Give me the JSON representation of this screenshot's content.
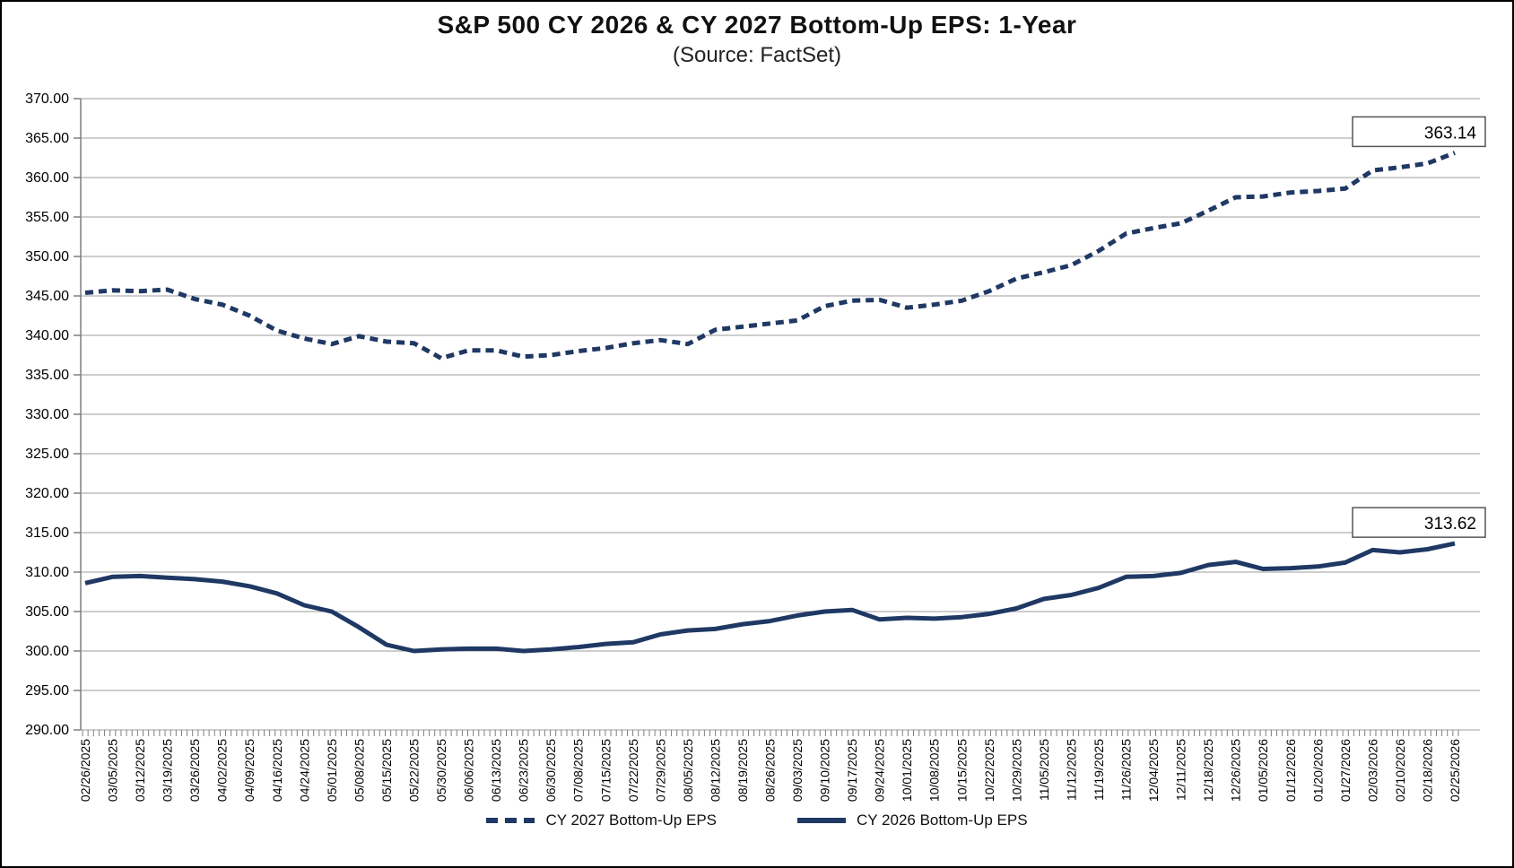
{
  "header": {
    "title": "S&P 500 CY 2026 & CY 2027 Bottom-Up EPS: 1-Year",
    "subtitle": "(Source: FactSet)"
  },
  "colors": {
    "line": "#1f3864",
    "grid": "#9d9d9d",
    "axis": "#7f7f7f",
    "text": "#000000",
    "callout_border": "#555555",
    "callout_fill": "#ffffff"
  },
  "legend": {
    "items": [
      {
        "label": "CY 2027 Bottom-Up EPS",
        "style": "dashed"
      },
      {
        "label": "CY 2026 Bottom-Up EPS",
        "style": "solid"
      }
    ]
  },
  "callouts": [
    {
      "series": "CY 2027 Bottom-Up EPS",
      "text": "363.14"
    },
    {
      "series": "CY 2026 Bottom-Up EPS",
      "text": "313.62"
    }
  ],
  "chart_data": {
    "type": "line",
    "title": "S&P 500 CY 2026 & CY 2027 Bottom-Up EPS: 1-Year",
    "subtitle": "(Source: FactSet)",
    "grid": "horizontal",
    "legend_position": "bottom-center",
    "ylim": [
      290,
      370
    ],
    "ytick_step": 5,
    "ytick_labels": [
      "370.00",
      "365.00",
      "360.00",
      "355.00",
      "350.00",
      "345.00",
      "340.00",
      "335.00",
      "330.00",
      "325.00",
      "320.00",
      "315.00",
      "310.00",
      "305.00",
      "300.00",
      "295.00",
      "290.00"
    ],
    "x": [
      "02/26/2025",
      "03/05/2025",
      "03/12/2025",
      "03/19/2025",
      "03/26/2025",
      "04/02/2025",
      "04/09/2025",
      "04/16/2025",
      "04/24/2025",
      "05/01/2025",
      "05/08/2025",
      "05/15/2025",
      "05/22/2025",
      "05/30/2025",
      "06/06/2025",
      "06/13/2025",
      "06/23/2025",
      "06/30/2025",
      "07/08/2025",
      "07/15/2025",
      "07/22/2025",
      "07/29/2025",
      "08/05/2025",
      "08/12/2025",
      "08/19/2025",
      "08/26/2025",
      "09/03/2025",
      "09/10/2025",
      "09/17/2025",
      "09/24/2025",
      "10/01/2025",
      "10/08/2025",
      "10/15/2025",
      "10/22/2025",
      "10/29/2025",
      "11/05/2025",
      "11/12/2025",
      "11/19/2025",
      "11/26/2025",
      "12/04/2025",
      "12/11/2025",
      "12/18/2025",
      "12/26/2025",
      "01/05/2026",
      "01/12/2026",
      "01/20/2026",
      "01/27/2026",
      "02/03/2026",
      "02/10/2026",
      "02/18/2026",
      "02/25/2026"
    ],
    "series": [
      {
        "name": "CY 2027 Bottom-Up EPS",
        "style": "dashed",
        "end_label": "363.14",
        "values": [
          345.4,
          345.7,
          345.6,
          345.8,
          344.6,
          343.9,
          342.5,
          340.6,
          339.6,
          338.9,
          339.9,
          339.2,
          339.0,
          337.1,
          338.1,
          338.1,
          337.3,
          337.5,
          338.0,
          338.4,
          339.0,
          339.4,
          338.9,
          340.7,
          341.1,
          341.5,
          341.9,
          343.7,
          344.4,
          344.5,
          343.5,
          343.9,
          344.4,
          345.6,
          347.2,
          348.0,
          348.9,
          350.7,
          352.9,
          353.6,
          354.2,
          355.8,
          357.5,
          357.6,
          358.1,
          358.3,
          358.6,
          360.9,
          361.3,
          361.8,
          363.14
        ]
      },
      {
        "name": "CY 2026 Bottom-Up EPS",
        "style": "solid",
        "end_label": "313.62",
        "values": [
          308.6,
          309.4,
          309.5,
          309.3,
          309.1,
          308.8,
          308.2,
          307.3,
          305.8,
          305.0,
          303.0,
          300.8,
          300.0,
          300.2,
          300.3,
          300.3,
          300.0,
          300.2,
          300.5,
          300.9,
          301.1,
          302.1,
          302.6,
          302.8,
          303.4,
          303.8,
          304.5,
          305.0,
          305.2,
          304.0,
          304.2,
          304.1,
          304.3,
          304.7,
          305.4,
          306.6,
          307.1,
          308.0,
          309.4,
          309.5,
          309.9,
          310.9,
          311.3,
          310.4,
          310.5,
          310.7,
          311.2,
          312.8,
          312.5,
          312.9,
          313.62
        ]
      }
    ]
  }
}
